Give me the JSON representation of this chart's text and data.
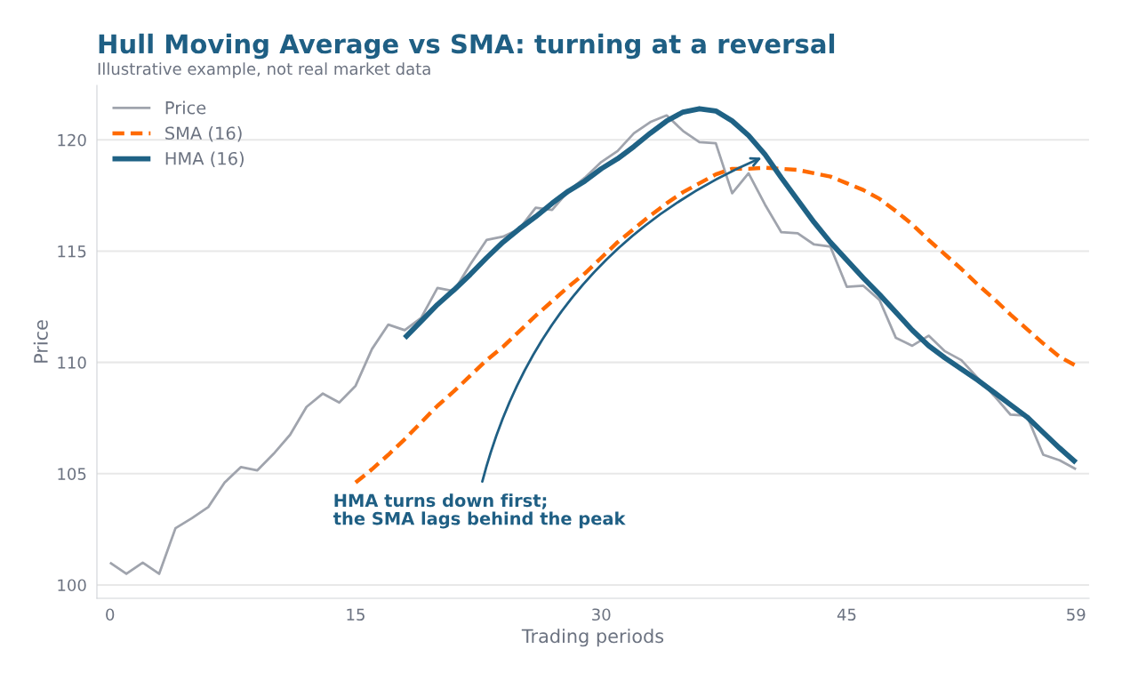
{
  "chart_data": {
    "type": "line",
    "title": "Hull Moving Average vs SMA: turning at a reversal",
    "subtitle": "Illustrative example, not real market data",
    "xlabel": "Trading periods",
    "ylabel": "Price",
    "x": [
      0,
      1,
      2,
      3,
      4,
      5,
      6,
      7,
      8,
      9,
      10,
      11,
      12,
      13,
      14,
      15,
      16,
      17,
      18,
      19,
      20,
      21,
      22,
      23,
      24,
      25,
      26,
      27,
      28,
      29,
      30,
      31,
      32,
      33,
      34,
      35,
      36,
      37,
      38,
      39,
      40,
      41,
      42,
      43,
      44,
      45,
      46,
      47,
      48,
      49,
      50,
      51,
      52,
      53,
      54,
      55,
      56,
      57,
      58,
      59
    ],
    "series": [
      {
        "name": "Price",
        "color": "#a0a4ad",
        "line_style": "solid",
        "values": [
          101.0,
          100.5,
          101.0,
          100.5,
          102.55,
          103.0,
          103.5,
          104.6,
          105.3,
          105.15,
          105.9,
          106.75,
          108.0,
          108.6,
          108.2,
          108.95,
          110.6,
          111.7,
          111.45,
          112.0,
          113.35,
          113.2,
          114.4,
          115.5,
          115.65,
          116.0,
          116.95,
          116.85,
          117.7,
          118.3,
          119.0,
          119.5,
          120.3,
          120.8,
          121.1,
          120.4,
          119.9,
          119.85,
          117.6,
          118.5,
          117.1,
          115.85,
          115.8,
          115.3,
          115.2,
          113.4,
          113.45,
          112.8,
          111.1,
          110.75,
          111.2,
          110.5,
          110.1,
          109.3,
          108.5,
          107.65,
          107.6,
          105.85,
          105.6,
          105.2
        ]
      },
      {
        "name": "SMA (16)",
        "color": "#ff6a00",
        "line_style": "dashed",
        "values": [
          null,
          null,
          null,
          null,
          null,
          null,
          null,
          null,
          null,
          null,
          null,
          null,
          null,
          null,
          null,
          104.6,
          105.2,
          105.85,
          106.55,
          107.3,
          108.05,
          108.7,
          109.4,
          110.1,
          110.7,
          111.4,
          112.1,
          112.75,
          113.4,
          114.0,
          114.7,
          115.4,
          116.0,
          116.6,
          117.15,
          117.65,
          118.05,
          118.45,
          118.7,
          118.7,
          118.75,
          118.7,
          118.65,
          118.5,
          118.35,
          118.05,
          117.75,
          117.35,
          116.8,
          116.2,
          115.5,
          114.85,
          114.2,
          113.5,
          112.85,
          112.15,
          111.5,
          110.85,
          110.25,
          109.85
        ]
      },
      {
        "name": "HMA (16)",
        "color": "#1f6285",
        "line_style": "solid",
        "values": [
          null,
          null,
          null,
          null,
          null,
          null,
          null,
          null,
          null,
          null,
          null,
          null,
          null,
          null,
          null,
          null,
          null,
          null,
          111.1,
          111.85,
          112.6,
          113.25,
          113.95,
          114.7,
          115.4,
          116.0,
          116.55,
          117.15,
          117.7,
          118.15,
          118.7,
          119.15,
          119.7,
          120.3,
          120.85,
          121.25,
          121.4,
          121.3,
          120.85,
          120.2,
          119.35,
          118.3,
          117.3,
          116.3,
          115.4,
          114.6,
          113.8,
          113.05,
          112.25,
          111.45,
          110.75,
          110.2,
          109.7,
          109.2,
          108.65,
          108.1,
          107.55,
          106.85,
          106.15,
          105.5
        ]
      }
    ],
    "annotations": [
      {
        "text": "HMA turns down first;\nthe SMA lags behind the peak",
        "x": 39.8,
        "y": 119.2
      }
    ],
    "xlim": [
      -0.8,
      59.8
    ],
    "xticks": [
      0,
      15,
      30,
      45,
      59
    ],
    "ylim": [
      99.4,
      122.45
    ],
    "yticks": [
      100,
      105,
      110,
      115,
      120
    ],
    "grid": "y",
    "legend": "top left",
    "marker": "none"
  }
}
